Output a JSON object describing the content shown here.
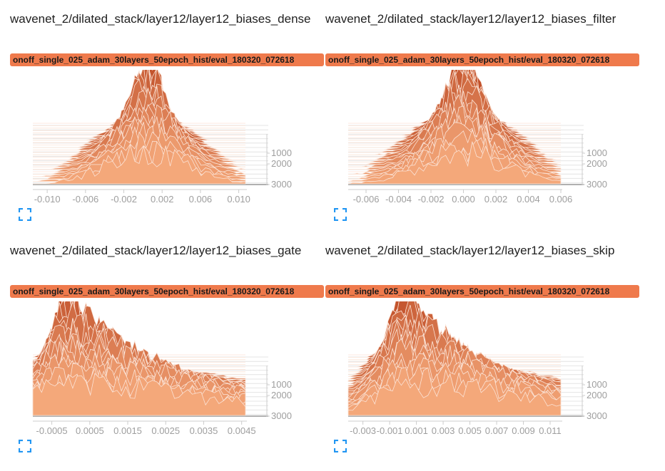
{
  "colors": {
    "badge": "#ef7a4c",
    "expand_icon": "#2196f3",
    "axis_text": "#9e9e9e"
  },
  "icons": {
    "expand": "expand-icon"
  },
  "panels": [
    {
      "title": "wavenet_2/dilated_stack/layer12/layer12_biases_dense",
      "run": "onoff_single_025_adam_30layers_50epoch_hist/eval_180320_072618"
    },
    {
      "title": "wavenet_2/dilated_stack/layer12/layer12_biases_filter",
      "run": "onoff_single_025_adam_30layers_50epoch_hist/eval_180320_072618"
    },
    {
      "title": "wavenet_2/dilated_stack/layer12/layer12_biases_gate",
      "run": "onoff_single_025_adam_30layers_50epoch_hist/eval_180320_072618"
    },
    {
      "title": "wavenet_2/dilated_stack/layer12/layer12_biases_skip",
      "run": "onoff_single_025_adam_30layers_50epoch_hist/eval_180320_072618"
    }
  ],
  "chart_data": [
    {
      "type": "area",
      "x_ticks": [
        "-0.010",
        "-0.006",
        "-0.002",
        "0.002",
        "0.006",
        "0.010"
      ],
      "x_tick_values": [
        -0.01,
        -0.006,
        -0.002,
        0.002,
        0.006,
        0.01
      ],
      "xlim": [
        -0.0115,
        0.0107
      ],
      "y_ticks": [
        "1000",
        "2000",
        "3000"
      ],
      "y_tick_values": [
        1000,
        2000,
        3000
      ],
      "ylim": [
        0,
        3000
      ],
      "distribution": {
        "center": 0.0005,
        "spread_start": 0.0012,
        "spread_end": 0.0042,
        "skew": 0.0
      }
    },
    {
      "type": "area",
      "x_ticks": [
        "-0.006",
        "-0.004",
        "-0.002",
        "0.000",
        "0.002",
        "0.004",
        "0.006"
      ],
      "x_tick_values": [
        -0.006,
        -0.004,
        -0.002,
        0.0,
        0.002,
        0.004,
        0.006
      ],
      "xlim": [
        -0.0071,
        0.006
      ],
      "y_ticks": [
        "1000",
        "2000",
        "3000"
      ],
      "y_tick_values": [
        1000,
        2000,
        3000
      ],
      "ylim": [
        0,
        3000
      ],
      "distribution": {
        "center": 0.0,
        "spread_start": 0.0009,
        "spread_end": 0.0026,
        "skew": 0.0
      }
    },
    {
      "type": "area",
      "x_ticks": [
        "-0.0005",
        "0.0005",
        "0.0015",
        "0.0025",
        "0.0035",
        "0.0045"
      ],
      "x_tick_values": [
        -0.0005,
        0.0005,
        0.0015,
        0.0025,
        0.0035,
        0.0045
      ],
      "xlim": [
        -0.001,
        0.0046
      ],
      "y_ticks": [
        "1000",
        "2000",
        "3000"
      ],
      "y_tick_values": [
        1000,
        2000,
        3000
      ],
      "ylim": [
        0,
        3000
      ],
      "distribution": {
        "center": -0.0001,
        "spread_start": 0.00025,
        "spread_end": 0.0009,
        "skew": 0.0028
      }
    },
    {
      "type": "area",
      "x_ticks": [
        "-0.003",
        "-0.001",
        "0.001",
        "0.003",
        "0.005",
        "0.007",
        "0.009",
        "0.011"
      ],
      "x_tick_values": [
        -0.003,
        -0.001,
        0.001,
        0.003,
        0.005,
        0.007,
        0.009,
        0.011
      ],
      "xlim": [
        -0.0041,
        0.0118
      ],
      "y_ticks": [
        "1000",
        "2000",
        "3000"
      ],
      "y_tick_values": [
        1000,
        2000,
        3000
      ],
      "ylim": [
        0,
        3000
      ],
      "distribution": {
        "center": 0.0,
        "spread_start": 0.0008,
        "spread_end": 0.0022,
        "skew": 0.0072
      }
    }
  ]
}
